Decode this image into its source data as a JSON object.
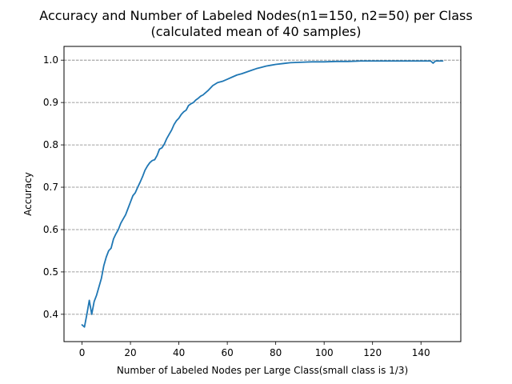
{
  "chart_data": {
    "type": "line",
    "title": "Accuracy and Number of Labeled Nodes(n1=150, n2=50) per Class",
    "subtitle": "(calculated mean of 40 samples)",
    "xlabel": "Number of Labeled Nodes per Large Class(small class is 1/3)",
    "ylabel": "Accuracy",
    "xlim": [
      -7.45,
      156.45
    ],
    "ylim": [
      0.3355,
      1.0325
    ],
    "xticks": [
      0,
      20,
      40,
      60,
      80,
      100,
      120,
      140
    ],
    "yticks": [
      0.4,
      0.5,
      0.6,
      0.7,
      0.8,
      0.9,
      1.0
    ],
    "grid": "y-dashed",
    "line_color": "#1f77b4",
    "series": [
      {
        "x": [
          0,
          1,
          2,
          3,
          4,
          5,
          6,
          7,
          8,
          9,
          10,
          11,
          12,
          13,
          14,
          15,
          16,
          17,
          18,
          19,
          20,
          21,
          22,
          23,
          24,
          25,
          26,
          27,
          28,
          29,
          30,
          31,
          32,
          33,
          34,
          35,
          36,
          37,
          38,
          39,
          40,
          41,
          42,
          43,
          44,
          45,
          46,
          47,
          48,
          49,
          50,
          52,
          54,
          56,
          58,
          60,
          62,
          64,
          66,
          68,
          70,
          72,
          74,
          76,
          78,
          80,
          83,
          86,
          90,
          95,
          100,
          105,
          110,
          115,
          120,
          125,
          130,
          135,
          140,
          142,
          143,
          144,
          145,
          146,
          147,
          148,
          149
        ],
        "values": [
          0.375,
          0.37,
          0.4,
          0.433,
          0.4,
          0.43,
          0.445,
          0.465,
          0.485,
          0.515,
          0.535,
          0.55,
          0.556,
          0.578,
          0.59,
          0.6,
          0.615,
          0.625,
          0.635,
          0.65,
          0.665,
          0.68,
          0.687,
          0.7,
          0.712,
          0.725,
          0.74,
          0.75,
          0.758,
          0.763,
          0.765,
          0.775,
          0.79,
          0.793,
          0.802,
          0.815,
          0.825,
          0.835,
          0.848,
          0.857,
          0.863,
          0.872,
          0.878,
          0.882,
          0.893,
          0.897,
          0.9,
          0.906,
          0.91,
          0.915,
          0.918,
          0.928,
          0.94,
          0.947,
          0.95,
          0.955,
          0.96,
          0.965,
          0.968,
          0.972,
          0.976,
          0.98,
          0.983,
          0.986,
          0.988,
          0.99,
          0.992,
          0.994,
          0.995,
          0.996,
          0.996,
          0.997,
          0.997,
          0.998,
          0.998,
          0.998,
          0.998,
          0.998,
          0.998,
          0.998,
          0.998,
          0.998,
          0.993,
          0.998,
          0.998,
          0.998,
          0.998
        ]
      }
    ]
  }
}
